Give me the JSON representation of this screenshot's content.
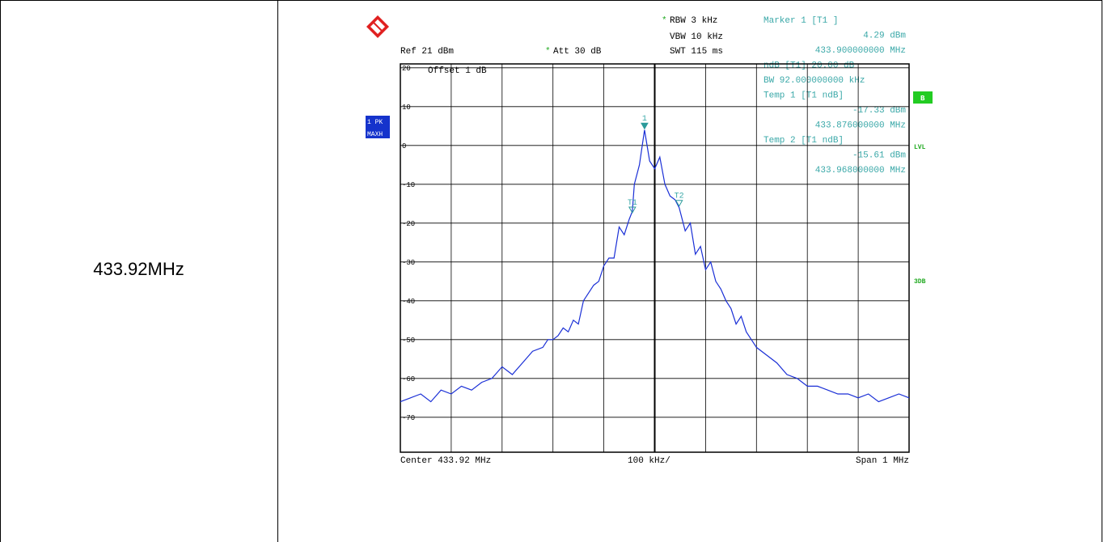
{
  "row_label": "433.92MHz",
  "header": {
    "rbw": "RBW 3 kHz",
    "vbw": "VBW 10 kHz",
    "swt": "SWT 115 ms",
    "ref": "Ref  21 dBm",
    "att": "Att  30 dB",
    "star": "*"
  },
  "marker_box": {
    "lines": [
      {
        "text": "Marker 1 [T1 ]",
        "align": "left"
      },
      {
        "text": "4.29 dBm",
        "align": "right"
      },
      {
        "text": "433.900000000 MHz",
        "align": "right"
      },
      {
        "text": "ndB [T1]   20.00 dB",
        "align": "left"
      },
      {
        "text": "BW  92.000000000 kHz",
        "align": "left"
      },
      {
        "text": "Temp 1 [T1 ndB]",
        "align": "left"
      },
      {
        "text": "-17.33 dBm",
        "align": "right"
      },
      {
        "text": "433.876000000 MHz",
        "align": "right"
      },
      {
        "text": "Temp 2 [T1 ndB]",
        "align": "left"
      },
      {
        "text": "-15.61 dBm",
        "align": "right"
      },
      {
        "text": "433.968000000 MHz",
        "align": "right"
      }
    ]
  },
  "side_labels": {
    "trace_pk": "1 PK",
    "trace_maxh": "MAXH",
    "b_badge": "B",
    "lvl": "LVL",
    "threedb": "3DB"
  },
  "offset_label": "Offset  1 dB",
  "footer": {
    "center": "Center 433.92 MHz",
    "div": "100 kHz/",
    "span": "Span 1 MHz"
  },
  "markers": [
    {
      "label": "1",
      "x": 433.9,
      "y": 4.29
    },
    {
      "label": "T1",
      "x": 433.876,
      "y": -17.33
    },
    {
      "label": "T2",
      "x": 433.968,
      "y": -15.61
    }
  ],
  "colors": {
    "trace": "#1a2fd6",
    "marker_text": "#3aa8a8",
    "marker_triangle": "#2a9a9a",
    "badge_blue": "#1533cc",
    "badge_green": "#22cc22",
    "grid": "#000000"
  },
  "chart_data": {
    "type": "line",
    "title": "",
    "xlabel": "",
    "ylabel": "",
    "x_unit": "MHz",
    "y_unit": "dBm",
    "xlim": [
      433.42,
      434.42
    ],
    "ylim": [
      -79,
      21
    ],
    "y_ticks": [
      20,
      10,
      0,
      -10,
      -20,
      -30,
      -40,
      -50,
      -60,
      -70
    ],
    "grid": true,
    "series": [
      {
        "x": [
          433.42,
          433.44,
          433.46,
          433.48,
          433.5,
          433.52,
          433.54,
          433.56,
          433.58,
          433.6,
          433.62,
          433.64,
          433.66,
          433.68,
          433.7,
          433.71,
          433.72,
          433.73,
          433.74,
          433.75,
          433.76,
          433.77,
          433.78,
          433.79,
          433.8,
          433.81,
          433.82,
          433.83,
          433.84,
          433.85,
          433.86,
          433.87,
          433.876,
          433.88,
          433.89,
          433.9,
          433.91,
          433.92,
          433.93,
          433.94,
          433.95,
          433.96,
          433.968,
          433.98,
          433.99,
          434.0,
          434.01,
          434.02,
          434.03,
          434.04,
          434.05,
          434.06,
          434.07,
          434.08,
          434.09,
          434.1,
          434.11,
          434.12,
          434.14,
          434.16,
          434.18,
          434.2,
          434.22,
          434.24,
          434.26,
          434.28,
          434.3,
          434.32,
          434.34,
          434.36,
          434.38,
          434.4,
          434.42
        ],
        "y": [
          -66,
          -65,
          -64,
          -66,
          -63,
          -64,
          -62,
          -63,
          -61,
          -60,
          -57,
          -59,
          -56,
          -53,
          -52,
          -50,
          -50,
          -49,
          -47,
          -48,
          -45,
          -46,
          -40,
          -38,
          -36,
          -35,
          -31,
          -29,
          -29,
          -21,
          -23,
          -19,
          -17,
          -10,
          -5,
          4,
          -4,
          -6,
          -3,
          -10,
          -13,
          -14,
          -16,
          -22,
          -20,
          -28,
          -26,
          -32,
          -30,
          -35,
          -37,
          -40,
          -42,
          -46,
          -44,
          -48,
          -50,
          -52,
          -54,
          -56,
          -59,
          -60,
          -62,
          -62,
          -63,
          -64,
          -64,
          -65,
          -64,
          -66,
          -65,
          -64,
          -65
        ]
      }
    ]
  }
}
